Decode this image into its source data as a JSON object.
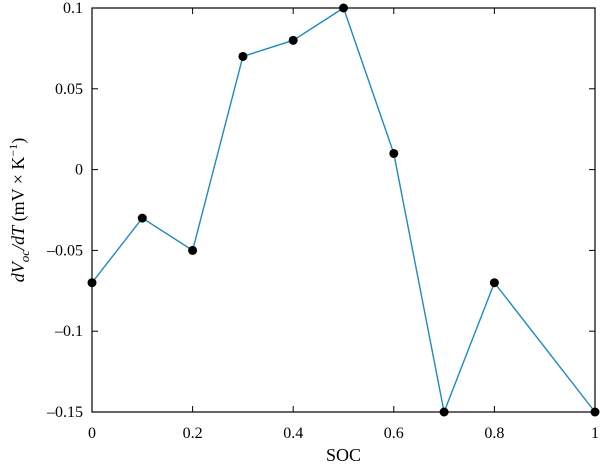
{
  "chart_data": {
    "type": "line",
    "title": "",
    "xlabel": "SOC",
    "ylabel": "dVoc/dT (mV × K−1)",
    "xlim": [
      0,
      1
    ],
    "ylim": [
      -0.15,
      0.1
    ],
    "xticks": [
      0,
      0.2,
      0.4,
      0.6,
      0.8,
      1
    ],
    "xtick_labels": [
      "0",
      "0.2",
      "0.4",
      "0.6",
      "0.8",
      "1"
    ],
    "yticks": [
      -0.15,
      -0.1,
      -0.05,
      0,
      0.05,
      0.1
    ],
    "ytick_labels": [
      "–0.15",
      "–0.1",
      "–0.05",
      "0",
      "0.05",
      "0.1"
    ],
    "grid": false,
    "series": [
      {
        "color": "#1f8ac0",
        "marker_color": "#000000",
        "x": [
          0,
          0.1,
          0.2,
          0.3,
          0.4,
          0.5,
          0.6,
          0.7,
          0.8,
          1.0
        ],
        "y": [
          -0.07,
          -0.03,
          -0.05,
          0.07,
          0.08,
          0.1,
          0.01,
          -0.15,
          -0.07,
          -0.15
        ]
      }
    ]
  },
  "ylabel_parts": {
    "d1": "d",
    "v": "V",
    "oc": "oc",
    "slash_d": "/dT",
    "units": " (mV × K",
    "exp": "−1",
    "close": ")"
  }
}
